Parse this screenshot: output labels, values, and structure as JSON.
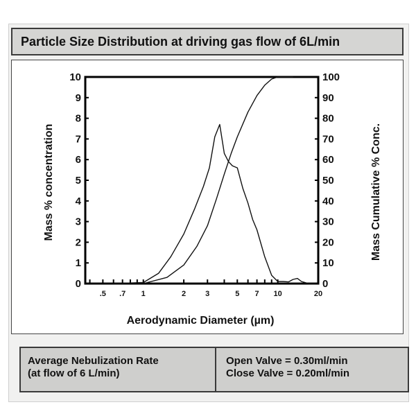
{
  "header": {
    "title": "Particle Size Distribution at driving gas flow of 6L/min"
  },
  "footer": {
    "left_line1": "Average Nebulization Rate",
    "left_line2": "(at flow of 6 L/min)",
    "open_valve": "Open Valve = 0.30ml/min",
    "close_valve": "Close Valve = 0.20ml/min"
  },
  "chart_data": {
    "type": "line",
    "title": "",
    "xlabel": "Aerodynamic Diameter (µm)",
    "ylabel_left": "Mass % concentration",
    "ylabel_right": "Mass Cumulative % Conc.",
    "x_scale": "log",
    "xlim": [
      0.37,
      20
    ],
    "ylim_left": [
      0,
      10
    ],
    "ylim_right": [
      0,
      100
    ],
    "x_ticks": [
      {
        "value": 0.5,
        "label": ".5"
      },
      {
        "value": 0.7,
        "label": ".7"
      },
      {
        "value": 1,
        "label": "1"
      },
      {
        "value": 2,
        "label": "2"
      },
      {
        "value": 3,
        "label": "3"
      },
      {
        "value": 5,
        "label": "5"
      },
      {
        "value": 7,
        "label": "7"
      },
      {
        "value": 10,
        "label": "10"
      },
      {
        "value": 20,
        "label": "20"
      }
    ],
    "y_ticks_left": [
      "0",
      "1",
      "2",
      "3",
      "4",
      "5",
      "6",
      "7",
      "8",
      "9",
      "10"
    ],
    "y_ticks_right": [
      "0",
      "10",
      "20",
      "30",
      "40",
      "50",
      "60",
      "70",
      "80",
      "90",
      "100"
    ],
    "grid": false,
    "series": [
      {
        "axis": "left",
        "x": [
          0.6,
          1.0,
          1.3,
          1.6,
          2.0,
          2.4,
          2.8,
          3.1,
          3.4,
          3.7,
          4.0,
          4.3,
          4.6,
          5.0,
          5.5,
          6.0,
          6.5,
          7.0,
          8.0,
          9.0,
          10.0,
          11.0,
          12.0,
          13.0,
          14.0,
          15.0,
          17.0,
          19.0
        ],
        "values": [
          0.0,
          0.05,
          0.5,
          1.3,
          2.4,
          3.6,
          4.7,
          5.6,
          7.1,
          7.7,
          6.3,
          5.9,
          5.7,
          5.6,
          4.6,
          3.9,
          3.1,
          2.6,
          1.3,
          0.4,
          0.1,
          0.1,
          0.08,
          0.2,
          0.25,
          0.1,
          0.0,
          0.0
        ]
      },
      {
        "axis": "right",
        "x": [
          1.0,
          1.5,
          2.0,
          2.5,
          3.0,
          3.5,
          4.0,
          4.5,
          5.0,
          6.0,
          7.0,
          8.0,
          9.0,
          10.0,
          11.0,
          12.0,
          13.0
        ],
        "values": [
          0.0,
          3.0,
          9.0,
          18.0,
          28.0,
          41.0,
          53.0,
          63.0,
          71.0,
          83.0,
          91.0,
          96.0,
          99.0,
          100.0,
          100.0,
          100.0,
          100.0
        ]
      }
    ]
  }
}
